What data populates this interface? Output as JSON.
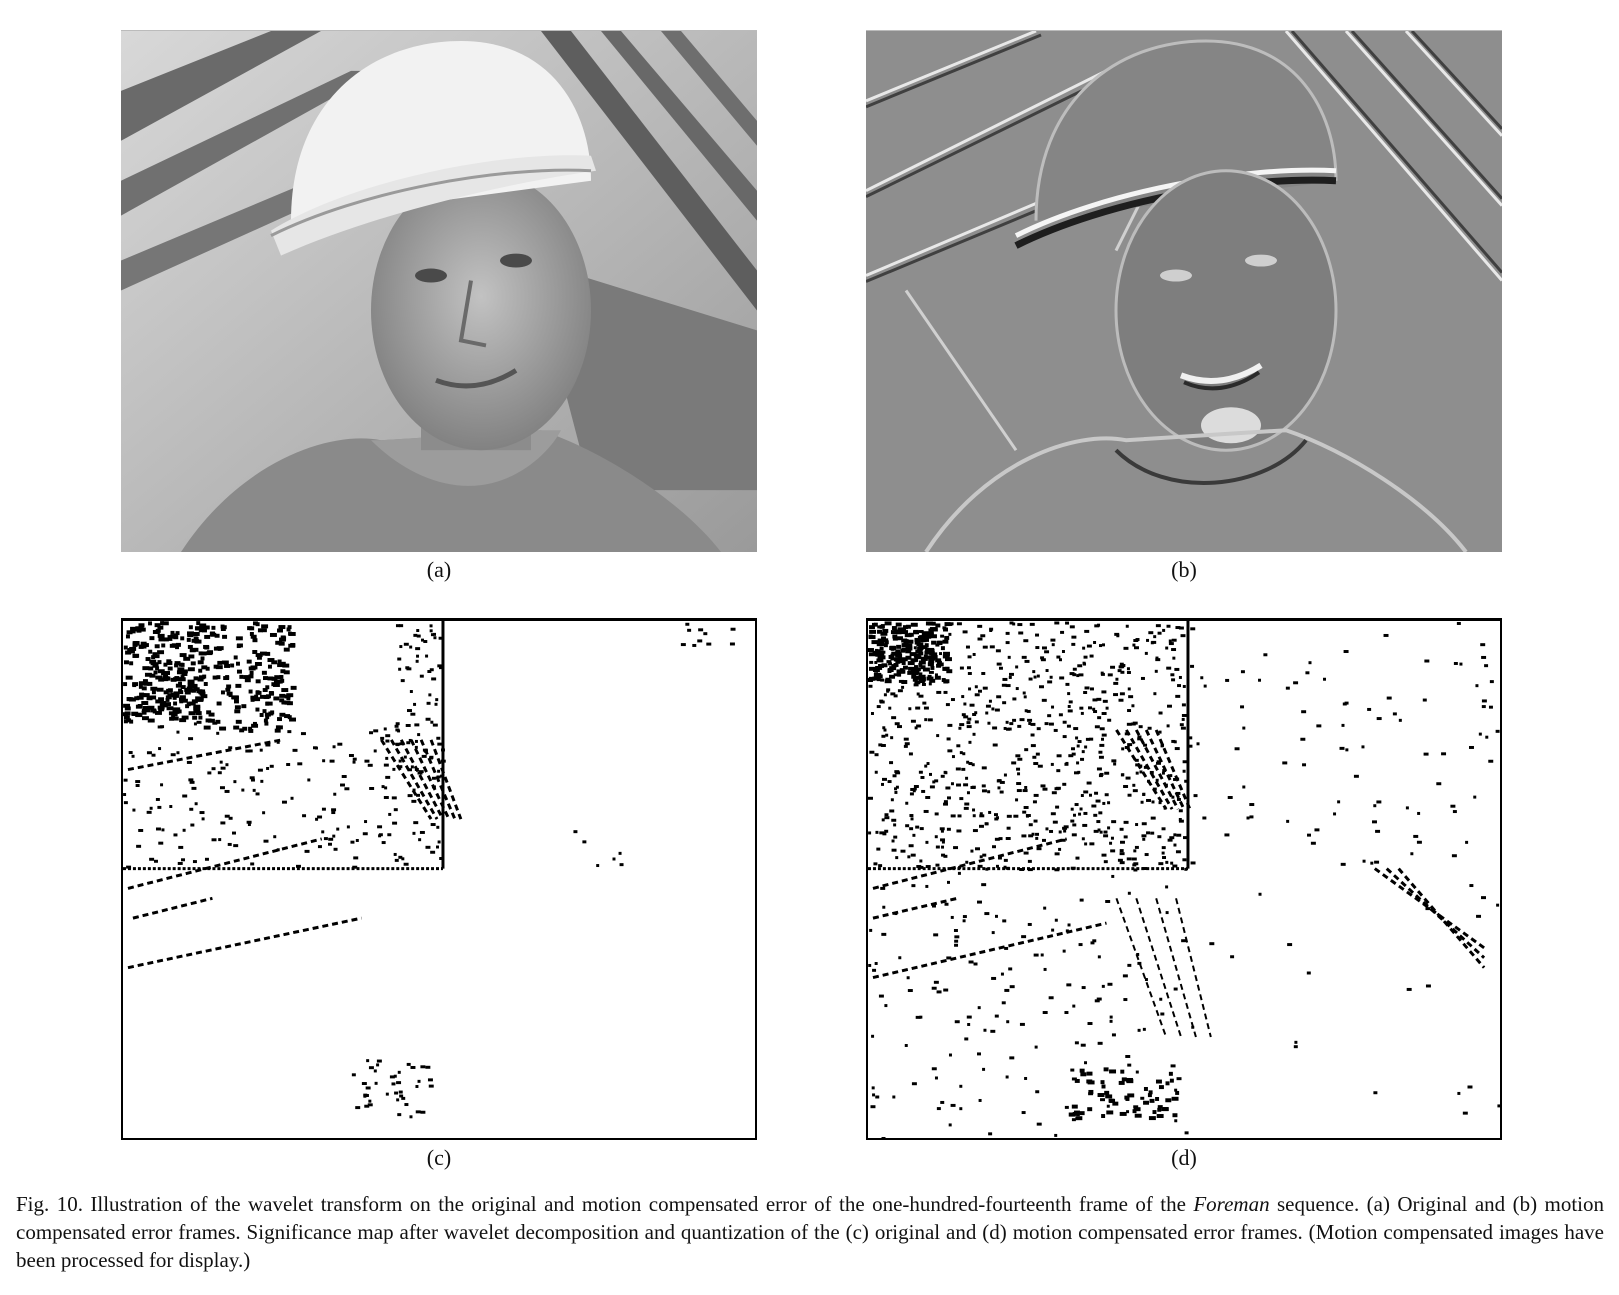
{
  "panels": [
    {
      "label": "(a)",
      "description": "Original frame"
    },
    {
      "label": "(b)",
      "description": "Motion compensated error frame"
    },
    {
      "label": "(c)",
      "description": "Significance map of original"
    },
    {
      "label": "(d)",
      "description": "Significance map of motion compensated error"
    }
  ],
  "caption": {
    "prefix": "Fig. 10.   Illustration of the wavelet transform on the original and motion compensated error of the one-hundred-fourteenth frame of the ",
    "sequence_name": "Foreman",
    "suffix": " sequence. (a) Original and (b) motion compensated error frames. Significance map after wavelet decomposition and quantization of the (c) original and (d) motion compensated error frames. (Motion compensated images have been processed for display.)"
  }
}
